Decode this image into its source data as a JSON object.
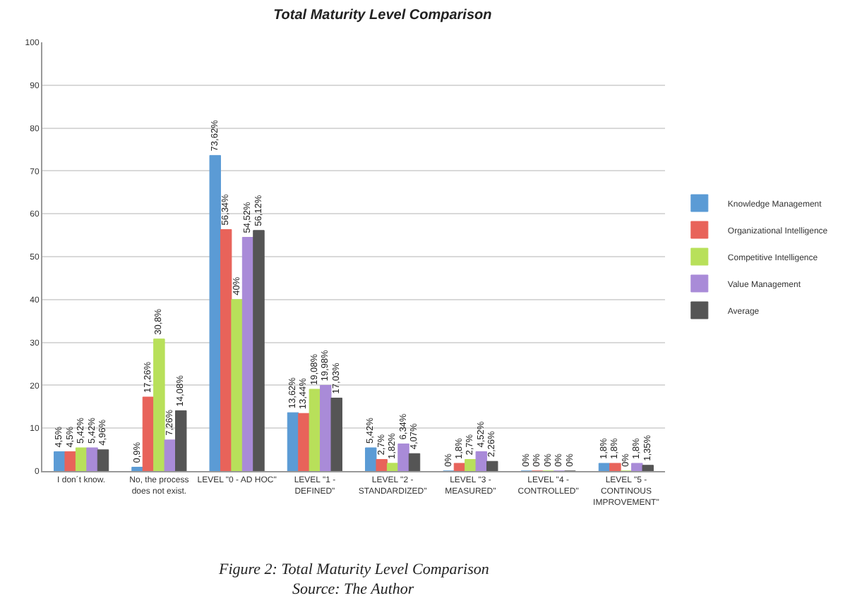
{
  "chart_data": {
    "type": "bar",
    "title": "Total Maturity Level Comparison",
    "categories": [
      "I don´t know.",
      "No, the process does not exist.",
      "LEVEL \"0 - AD HOC\"",
      "LEVEL \"1 - DEFINED\"",
      "LEVEL \"2 - STANDARDIZED\"",
      "LEVEL \"3 - MEASURED\"",
      "LEVEL \"4 - CONTROLLED\"",
      "LEVEL \"5 - CONTINOUS IMPROVEMENT\""
    ],
    "series": [
      {
        "name": "Knowledge Management",
        "color": "#5b9bd5",
        "values": [
          4.5,
          0.9,
          73.62,
          13.62,
          5.42,
          0,
          0,
          1.8
        ],
        "value_labels": [
          "4,5%",
          "0,9%",
          "73,62%",
          "13,62%",
          "5,42%",
          "0%",
          "0%",
          "1,8%"
        ]
      },
      {
        "name": "Organizational Intelligence",
        "color": "#e8635a",
        "values": [
          4.5,
          17.26,
          56.34,
          13.44,
          2.7,
          1.8,
          0,
          1.8
        ],
        "value_labels": [
          "4,5%",
          "17,26%",
          "56,34%",
          "13,44%",
          "2,7%",
          "1,8%",
          "0%",
          "1,8%"
        ]
      },
      {
        "name": "Competitive Intelligence",
        "color": "#b8e05a",
        "values": [
          5.42,
          30.8,
          40,
          19.08,
          1.82,
          2.7,
          0,
          0
        ],
        "value_labels": [
          "5,42%",
          "30,8%",
          "40%",
          "19,08%",
          "1,82%",
          "2,7%",
          "0%",
          "0%"
        ]
      },
      {
        "name": "Value Management",
        "color": "#a98bd8",
        "values": [
          5.42,
          7.26,
          54.52,
          19.98,
          6.34,
          4.52,
          0,
          1.8
        ],
        "value_labels": [
          "5,42%",
          "7,26%",
          "54,52%",
          "19,98%",
          "6,34%",
          "4,52%",
          "0%",
          "1,8%"
        ]
      },
      {
        "name": "Average",
        "color": "#555555",
        "values": [
          4.96,
          14.08,
          56.12,
          17.03,
          4.07,
          2.26,
          0,
          1.35
        ],
        "value_labels": [
          "4,96%",
          "14,08%",
          "56,12%",
          "17,03%",
          "4,07%",
          "2,26%",
          "0%",
          "1,35%"
        ]
      }
    ],
    "ylim": [
      0,
      100
    ],
    "yticks": [
      0,
      10,
      20,
      30,
      40,
      50,
      60,
      70,
      80,
      90,
      100
    ],
    "grid": "y",
    "legend": "right",
    "annotations": [
      "Figure 2: Total Maturity Level Comparison",
      "Source: The Author"
    ]
  }
}
